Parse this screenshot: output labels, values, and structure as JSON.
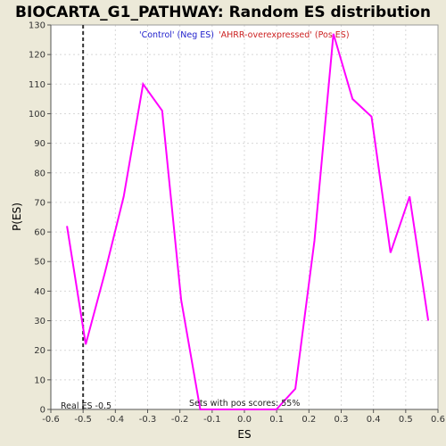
{
  "colors": {
    "page_background": "#ECE9D8",
    "plot_background": "#FFFFFF",
    "line": "#FF00FF",
    "grid": "#D8D8D8",
    "neg_legend": "#2222CC",
    "pos_legend": "#CC2222",
    "real_es_line": "#333333"
  },
  "chart_data": {
    "type": "line",
    "title": "BIOCARTA_G1_PATHWAY: Random ES distribution",
    "xlabel": "ES",
    "ylabel": "P(ES)",
    "xlim": [
      -0.6,
      0.6
    ],
    "ylim": [
      0,
      130
    ],
    "xticks": [
      -0.6,
      -0.5,
      -0.4,
      -0.3,
      -0.2,
      -0.1,
      0.0,
      0.1,
      0.2,
      0.3,
      0.4,
      0.5,
      0.6
    ],
    "xtick_labels": [
      "-0.6",
      "-0.5",
      "-0.4",
      "-0.3",
      "-0.2",
      "-0.1",
      "0.0",
      "0.1",
      "0.2",
      "0.3",
      "0.4",
      "0.5",
      "0.6"
    ],
    "yticks": [
      0,
      10,
      20,
      30,
      40,
      50,
      60,
      70,
      80,
      90,
      100,
      110,
      120,
      130
    ],
    "ytick_labels": [
      "0",
      "10",
      "20",
      "30",
      "40",
      "50",
      "60",
      "70",
      "80",
      "90",
      "100",
      "110",
      "120",
      "130"
    ],
    "grid": true,
    "series": [
      {
        "x": [
          -0.55,
          -0.492,
          -0.433,
          -0.374,
          -0.314,
          -0.255,
          -0.196,
          -0.137,
          -0.078,
          -0.019,
          0.04,
          0.099,
          0.158,
          0.217,
          0.276,
          0.335,
          0.394,
          0.453,
          0.512,
          0.57
        ],
        "y": [
          62,
          22,
          46,
          72,
          110,
          101,
          37,
          0,
          0,
          0,
          0,
          0,
          7,
          57,
          127,
          105,
          99,
          53,
          72,
          30
        ]
      }
    ],
    "real_es": -0.5,
    "legend": {
      "neg_label": "'Control' (Neg ES)",
      "pos_label": "'AHRR-overexpressed' (Pos ES)",
      "placement": "top"
    },
    "annotations": {
      "real_es_label": "Real ES -0.5",
      "pos_scores_label": "Sets with pos scores: 55%"
    }
  }
}
